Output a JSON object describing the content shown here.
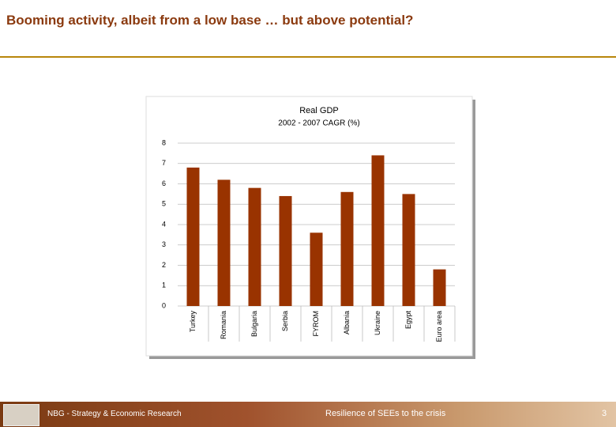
{
  "header": {
    "title": "Booming activity, albeit from a low base … but above potential?"
  },
  "chart_data": {
    "type": "bar",
    "title": "Real GDP",
    "subtitle": "2002 - 2007 CAGR (%)",
    "categories": [
      "Turkey",
      "Romania",
      "Bulgaria",
      "Serbia",
      "FYROM",
      "Albania",
      "Ukraine",
      "Egypt",
      "Euro area"
    ],
    "values": [
      6.8,
      6.2,
      5.8,
      5.4,
      3.6,
      5.6,
      7.4,
      5.5,
      1.8
    ],
    "color": "#993300",
    "ylim": [
      0,
      8
    ],
    "yticks": [
      0,
      1,
      2,
      3,
      4,
      5,
      6,
      7,
      8
    ],
    "grid": true
  },
  "footer": {
    "left": "NBG - Strategy & Economic Research",
    "center": "Resilience of SEEs to the crisis",
    "page": "3"
  }
}
